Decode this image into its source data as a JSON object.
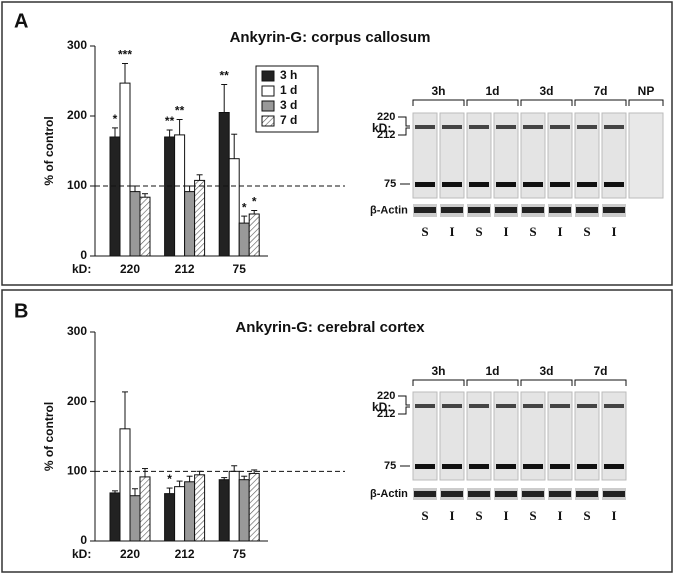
{
  "chart_data": [
    {
      "type": "bar",
      "panel": "A",
      "title": "Ankyrin-G:  corpus  callosum",
      "ylabel": "% of control",
      "xlabel": "kD:",
      "categories": [
        "220",
        "212",
        "75"
      ],
      "series": [
        {
          "name": "3 h",
          "color": "#222222",
          "values": [
            170,
            170,
            205
          ],
          "errors": [
            13,
            10,
            40
          ],
          "annotations": [
            "*",
            "**",
            "**"
          ]
        },
        {
          "name": "1 d",
          "color": "#ffffff",
          "values": [
            247,
            173,
            139
          ],
          "errors": [
            28,
            22,
            35
          ],
          "annotations": [
            "***",
            "**",
            null
          ]
        },
        {
          "name": "3 d",
          "color": "#999999",
          "values": [
            92,
            92,
            47
          ],
          "errors": [
            8,
            8,
            10
          ],
          "annotations": [
            null,
            null,
            "*"
          ]
        },
        {
          "name": "7 d",
          "color": "#ffffff",
          "pattern": "hatch",
          "values": [
            84,
            108,
            60
          ],
          "errors": [
            5,
            8,
            5
          ],
          "annotations": [
            null,
            null,
            "*"
          ]
        }
      ],
      "ylim": [
        0,
        300
      ],
      "yticks": [
        0,
        100,
        200,
        300
      ],
      "reference_line": 100,
      "legend": true,
      "blot": {
        "groups": [
          "3h",
          "1d",
          "3d",
          "7d",
          "NP"
        ],
        "lanes": [
          "S",
          "I",
          "S",
          "I",
          "S",
          "I",
          "S",
          "I"
        ],
        "kd_label": "kD:",
        "markers": [
          "220",
          "212",
          "75"
        ],
        "loading": "β-Actin"
      }
    },
    {
      "type": "bar",
      "panel": "B",
      "title": "Ankyrin-G:  cerebral cortex",
      "ylabel": "% of control",
      "xlabel": "kD:",
      "categories": [
        "220",
        "212",
        "75"
      ],
      "series": [
        {
          "name": "3 h",
          "color": "#222222",
          "values": [
            69,
            68,
            88
          ],
          "errors": [
            3,
            8,
            3
          ],
          "annotations": [
            null,
            "*",
            null
          ]
        },
        {
          "name": "1 d",
          "color": "#ffffff",
          "values": [
            161,
            78,
            100
          ],
          "errors": [
            53,
            8,
            8
          ],
          "annotations": [
            null,
            null,
            null
          ]
        },
        {
          "name": "3 d",
          "color": "#999999",
          "values": [
            65,
            85,
            88
          ],
          "errors": [
            10,
            8,
            5
          ],
          "annotations": [
            null,
            null,
            null
          ]
        },
        {
          "name": "7 d",
          "color": "#ffffff",
          "pattern": "hatch",
          "values": [
            92,
            95,
            97
          ],
          "errors": [
            12,
            5,
            5
          ],
          "annotations": [
            null,
            null,
            null
          ]
        }
      ],
      "ylim": [
        0,
        300
      ],
      "yticks": [
        0,
        100,
        200,
        300
      ],
      "reference_line": 100,
      "legend": false,
      "blot": {
        "groups": [
          "3h",
          "1d",
          "3d",
          "7d"
        ],
        "lanes": [
          "S",
          "I",
          "S",
          "I",
          "S",
          "I",
          "S",
          "I"
        ],
        "kd_label": "kD:",
        "markers": [
          "220",
          "212",
          "75"
        ],
        "loading": "β-Actin"
      }
    }
  ]
}
